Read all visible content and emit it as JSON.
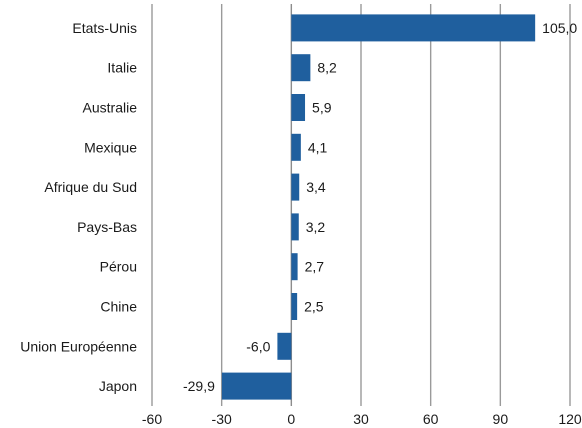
{
  "chart_data": {
    "type": "bar",
    "orientation": "horizontal",
    "categories": [
      "Etats-Unis",
      "Italie",
      "Australie",
      "Mexique",
      "Afrique du Sud",
      "Pays-Bas",
      "Pérou",
      "Chine",
      "Union Européenne",
      "Japon"
    ],
    "values": [
      105.0,
      8.2,
      5.9,
      4.1,
      3.4,
      3.2,
      2.7,
      2.5,
      -6.0,
      -29.9
    ],
    "value_labels": [
      "105,0",
      "8,2",
      "5,9",
      "4,1",
      "3,4",
      "3,2",
      "2,7",
      "2,5",
      "-6,0",
      "-29,9"
    ],
    "x_ticks": [
      -60,
      -30,
      0,
      30,
      60,
      90,
      120
    ],
    "x_tick_labels": [
      "-60",
      "-30",
      "0",
      "30",
      "60",
      "90",
      "120"
    ],
    "xlim": [
      -60,
      120
    ],
    "grid": "vertical",
    "bar_color": "#1f5f9e",
    "title": "",
    "xlabel": "",
    "ylabel": ""
  }
}
